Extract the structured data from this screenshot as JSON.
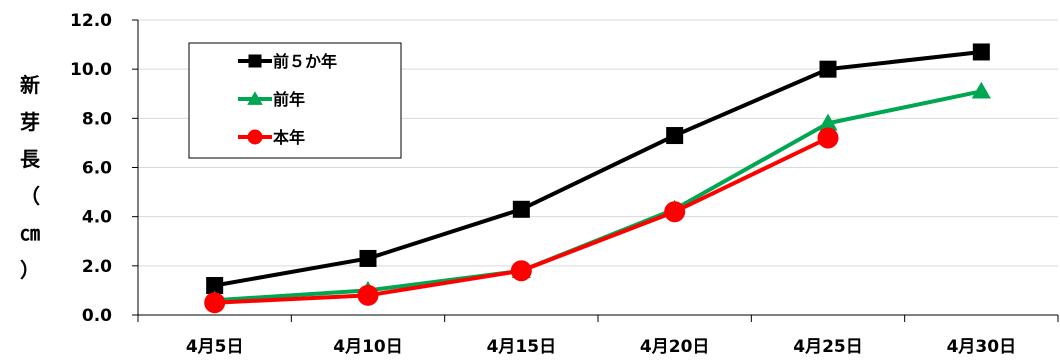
{
  "chart_data": {
    "type": "line",
    "categories": [
      "4月5日",
      "4月10日",
      "4月15日",
      "4月20日",
      "4月25日",
      "4月30日"
    ],
    "ylabel_chars": [
      "新",
      "芽",
      "長",
      "（",
      "㎝",
      "）"
    ],
    "ylim": [
      0,
      12
    ],
    "yticks": [
      "0.0",
      "2.0",
      "4.0",
      "6.0",
      "8.0",
      "10.0",
      "12.0"
    ],
    "grid": true,
    "legend_position": "top-left",
    "series": [
      {
        "name": "前５か年",
        "color": "#000000",
        "marker": "square",
        "values": [
          1.2,
          2.3,
          4.3,
          7.3,
          10.0,
          10.7
        ]
      },
      {
        "name": "前年",
        "color": "#00a651",
        "marker": "triangle",
        "values": [
          0.6,
          1.0,
          1.8,
          4.3,
          7.8,
          9.1
        ]
      },
      {
        "name": "本年",
        "color": "#ff0000",
        "marker": "circle",
        "values": [
          0.5,
          0.8,
          1.8,
          4.2,
          7.2,
          null
        ]
      }
    ]
  }
}
